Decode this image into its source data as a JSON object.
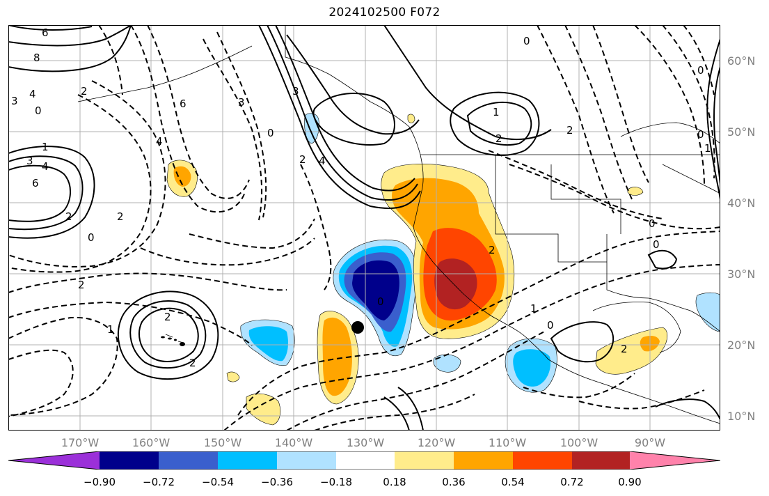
{
  "title": "2024102500 F072",
  "lat_labels": [
    "60°N",
    "50°N",
    "40°N",
    "30°N",
    "20°N",
    "10°N"
  ],
  "lon_labels": [
    "170°W",
    "160°W",
    "150°W",
    "140°W",
    "130°W",
    "120°W",
    "110°W",
    "100°W",
    "90°W"
  ],
  "colorbar": {
    "ticks": [
      "−0.90",
      "−0.72",
      "−0.54",
      "−0.36",
      "−0.18",
      "0.18",
      "0.36",
      "0.54",
      "0.72",
      "0.90"
    ],
    "colors": [
      "#9b30d9",
      "#00008b",
      "#3a5fcd",
      "#00bfff",
      "#b0e2ff",
      "#ffffff",
      "#ffec8b",
      "#ffa500",
      "#ff4500",
      "#b22222",
      "#ff82ab"
    ]
  },
  "contour_labels": [
    "6",
    "8",
    "4",
    "3",
    "0",
    "2",
    "1",
    "3",
    "4",
    "6",
    "2",
    "2",
    "1",
    "0",
    "2",
    "4",
    "6",
    "2",
    "2",
    "3",
    "0",
    "2",
    "3",
    "4",
    "0",
    "1",
    "2",
    "2",
    "0",
    "0",
    "1",
    "0",
    "0",
    "0",
    "2",
    "0",
    "2",
    "1"
  ],
  "colors": {
    "land_line": "#000000",
    "grid": "#b0b0b0",
    "axis_text": "#808080"
  }
}
